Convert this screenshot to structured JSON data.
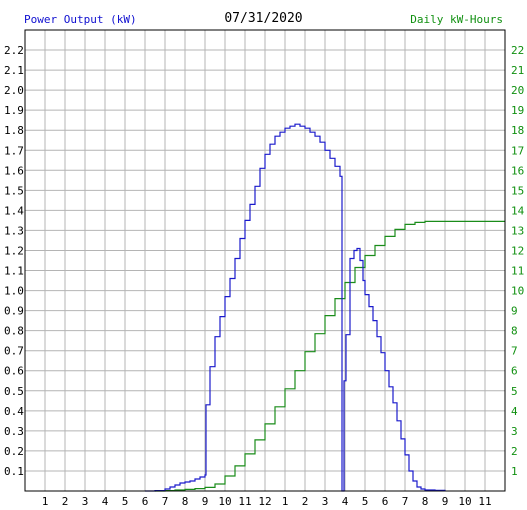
{
  "header": {
    "left_label": "Power Output (kW)",
    "date": "07/31/2020",
    "right_label": "Daily kW-Hours"
  },
  "colors": {
    "power": "#1a1acc",
    "energy": "#1a8c1a",
    "grid": "#b4b4b4",
    "left_axis_text": "#000000",
    "right_axis_text": "#109010"
  },
  "chart_data": {
    "type": "line",
    "title": "07/31/2020",
    "x_ticks": [
      "1",
      "2",
      "3",
      "4",
      "5",
      "6",
      "7",
      "8",
      "9",
      "10",
      "11",
      "12",
      "1",
      "2",
      "3",
      "4",
      "5",
      "6",
      "7",
      "8",
      "9",
      "10",
      "11"
    ],
    "xlim": [
      0,
      24
    ],
    "ylim_left": [
      0,
      2.3
    ],
    "y_ticks_left": [
      "0.1",
      "0.2",
      "0.3",
      "0.4",
      "0.5",
      "0.6",
      "0.7",
      "0.8",
      "0.9",
      "1.0",
      "1.1",
      "1.2",
      "1.3",
      "1.4",
      "1.5",
      "1.6",
      "1.7",
      "1.8",
      "1.9",
      "2.0",
      "2.1",
      "2.2"
    ],
    "ylim_right": [
      0,
      23
    ],
    "y_ticks_right": [
      "1",
      "2",
      "3",
      "4",
      "5",
      "6",
      "7",
      "8",
      "9",
      "10",
      "11",
      "12",
      "13",
      "14",
      "15",
      "16",
      "17",
      "18",
      "19",
      "20",
      "21",
      "22"
    ],
    "grid": true,
    "series": [
      {
        "name": "Power Output (kW)",
        "axis": "left",
        "points": [
          [
            6.0,
            0
          ],
          [
            6.5,
            0.002
          ],
          [
            7.0,
            0.01
          ],
          [
            7.25,
            0.02
          ],
          [
            7.5,
            0.03
          ],
          [
            7.75,
            0.04
          ],
          [
            8.0,
            0.045
          ],
          [
            8.25,
            0.05
          ],
          [
            8.5,
            0.06
          ],
          [
            8.75,
            0.07
          ],
          [
            9.0,
            0.08
          ],
          [
            9.05,
            0.43
          ],
          [
            9.25,
            0.62
          ],
          [
            9.5,
            0.77
          ],
          [
            9.75,
            0.87
          ],
          [
            10.0,
            0.97
          ],
          [
            10.25,
            1.06
          ],
          [
            10.5,
            1.16
          ],
          [
            10.75,
            1.26
          ],
          [
            11.0,
            1.35
          ],
          [
            11.25,
            1.43
          ],
          [
            11.5,
            1.52
          ],
          [
            11.75,
            1.61
          ],
          [
            12.0,
            1.68
          ],
          [
            12.25,
            1.73
          ],
          [
            12.5,
            1.77
          ],
          [
            12.75,
            1.79
          ],
          [
            13.0,
            1.81
          ],
          [
            13.25,
            1.82
          ],
          [
            13.5,
            1.83
          ],
          [
            13.75,
            1.82
          ],
          [
            14.0,
            1.81
          ],
          [
            14.25,
            1.79
          ],
          [
            14.5,
            1.77
          ],
          [
            14.75,
            1.74
          ],
          [
            15.0,
            1.7
          ],
          [
            15.25,
            1.66
          ],
          [
            15.5,
            1.62
          ],
          [
            15.75,
            1.57
          ],
          [
            15.85,
            0.0
          ],
          [
            15.95,
            0.55
          ],
          [
            16.05,
            0.78
          ],
          [
            16.25,
            1.16
          ],
          [
            16.45,
            1.2
          ],
          [
            16.6,
            1.21
          ],
          [
            16.75,
            1.15
          ],
          [
            16.9,
            1.05
          ],
          [
            17.0,
            0.98
          ],
          [
            17.2,
            0.92
          ],
          [
            17.4,
            0.85
          ],
          [
            17.6,
            0.77
          ],
          [
            17.8,
            0.69
          ],
          [
            18.0,
            0.6
          ],
          [
            18.2,
            0.52
          ],
          [
            18.4,
            0.44
          ],
          [
            18.6,
            0.35
          ],
          [
            18.8,
            0.26
          ],
          [
            19.0,
            0.18
          ],
          [
            19.2,
            0.1
          ],
          [
            19.4,
            0.05
          ],
          [
            19.6,
            0.02
          ],
          [
            19.8,
            0.01
          ],
          [
            20.0,
            0.005
          ],
          [
            20.5,
            0.003
          ],
          [
            21.0,
            0
          ]
        ]
      },
      {
        "name": "Daily kW-Hours",
        "axis": "right",
        "points": [
          [
            6.5,
            0
          ],
          [
            7.0,
            0.02
          ],
          [
            7.5,
            0.05
          ],
          [
            8.0,
            0.08
          ],
          [
            8.5,
            0.12
          ],
          [
            9.0,
            0.18
          ],
          [
            9.5,
            0.35
          ],
          [
            10.0,
            0.75
          ],
          [
            10.5,
            1.25
          ],
          [
            11.0,
            1.85
          ],
          [
            11.5,
            2.55
          ],
          [
            12.0,
            3.35
          ],
          [
            12.5,
            4.2
          ],
          [
            13.0,
            5.1
          ],
          [
            13.5,
            6.0
          ],
          [
            14.0,
            6.95
          ],
          [
            14.5,
            7.85
          ],
          [
            15.0,
            8.75
          ],
          [
            15.5,
            9.6
          ],
          [
            16.0,
            10.4
          ],
          [
            16.5,
            11.15
          ],
          [
            17.0,
            11.75
          ],
          [
            17.5,
            12.25
          ],
          [
            18.0,
            12.7
          ],
          [
            18.5,
            13.05
          ],
          [
            19.0,
            13.3
          ],
          [
            19.5,
            13.4
          ],
          [
            20.0,
            13.45
          ],
          [
            24.0,
            13.45
          ]
        ]
      }
    ]
  }
}
